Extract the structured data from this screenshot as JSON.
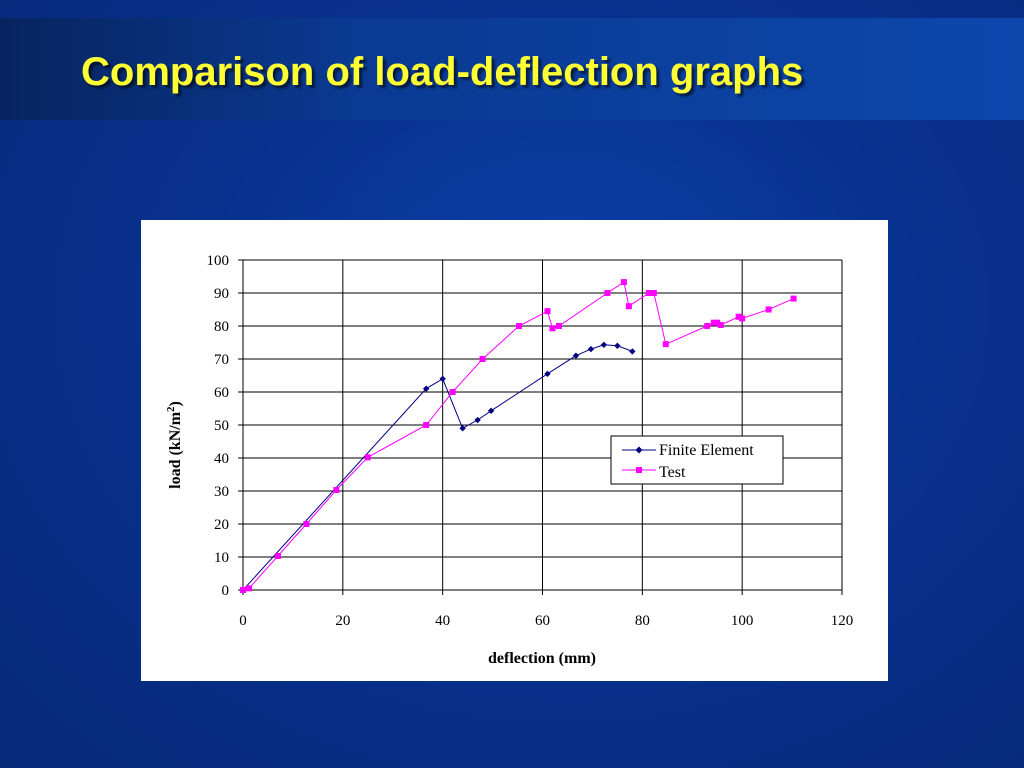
{
  "slide": {
    "title": "Comparison of load-deflection graphs"
  },
  "chart_data": {
    "type": "line",
    "title": "",
    "xlabel": "deflection (mm)",
    "ylabel_main": "load (kN/m",
    "ylabel_sup": "2",
    "ylabel_close": ")",
    "xlim": [
      0,
      120
    ],
    "ylim": [
      0,
      100
    ],
    "x_ticks": [
      0,
      20,
      40,
      60,
      80,
      100,
      120
    ],
    "y_ticks": [
      0,
      10,
      20,
      30,
      40,
      50,
      60,
      70,
      80,
      90,
      100
    ],
    "grid": true,
    "legend_position": "right-middle",
    "series": [
      {
        "name": "Finite Element",
        "color": "#000080",
        "marker": "diamond",
        "x": [
          0,
          36.7,
          40,
          44,
          47,
          49.7,
          61,
          66.7,
          69.7,
          72.3,
          75,
          78
        ],
        "y": [
          0,
          61,
          64,
          49,
          51.5,
          54.3,
          65.5,
          71,
          73,
          74.3,
          74,
          72.3
        ]
      },
      {
        "name": "Test",
        "color": "#ff00ff",
        "marker": "square",
        "x": [
          0,
          1.2,
          7,
          12.7,
          18.7,
          25,
          36.7,
          42,
          48,
          55.3,
          61,
          62,
          63.3,
          73,
          76.3,
          77.3,
          81.3,
          82.3,
          84.7,
          93,
          94.3,
          95,
          95.7,
          99.3,
          100,
          105.3,
          110.3
        ],
        "y": [
          0,
          0.5,
          10.3,
          20,
          30.3,
          40.2,
          50,
          60,
          70,
          80,
          84.5,
          79.3,
          80,
          90,
          93.3,
          86,
          90,
          90,
          74.5,
          80,
          81,
          81,
          80.3,
          82.8,
          82.3,
          85,
          88.3
        ]
      }
    ]
  }
}
